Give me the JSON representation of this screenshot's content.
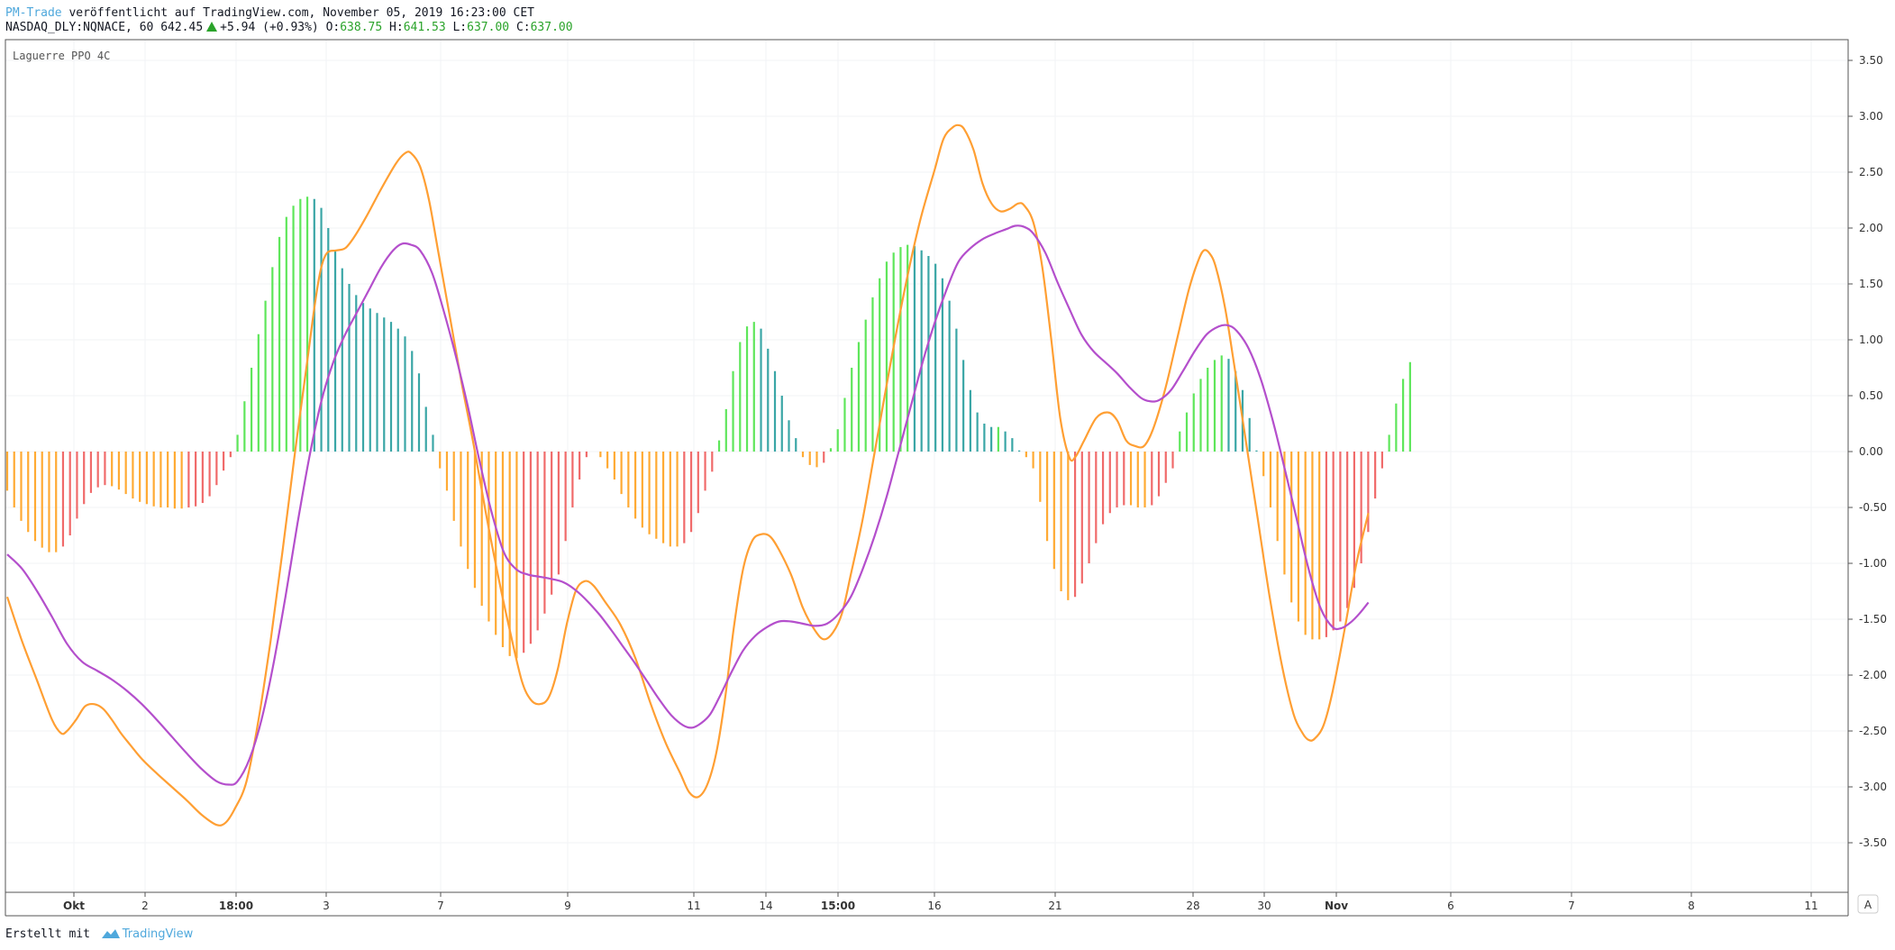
{
  "header": {
    "author": "PM-Trade",
    "published_text": "veröffentlicht auf TradingView.com, November 05, 2019 16:23:00 CET",
    "symbol": "NASDAQ_DLY:NQNACE, 60",
    "price": "642.45",
    "change": "+5.94 (+0.93%)",
    "o_label": "O:",
    "o_value": "638.75",
    "h_label": "H:",
    "h_value": "641.53",
    "l_label": "L:",
    "l_value": "637.00",
    "c_label": "C:",
    "c_value": "637.00",
    "up_icon": "triangle-up-icon"
  },
  "indicator_label": "Laguerre PPO 4C",
  "footer": {
    "prefix": "Erstellt mit",
    "brand": "TradingView",
    "brand_icon": "tradingview-logo-icon"
  },
  "scale_button": "A",
  "colors": {
    "orange_line": "#ff9f33",
    "purple_line": "#b44fcc",
    "hist_rising_pos": "#5ee65a",
    "hist_falling_pos": "#3aa6a6",
    "hist_rising_neg": "#ffaa33",
    "hist_falling_neg": "#f06a6a",
    "grid": "#f2f3f5",
    "author": "#4fa8dc",
    "up": "#2aa32a"
  },
  "chart_data": {
    "type": "line",
    "title": "Laguerre PPO 4C",
    "ylim": [
      -4.0,
      3.75
    ],
    "y_ticks": [
      "3.50",
      "3.00",
      "2.50",
      "2.00",
      "1.50",
      "1.00",
      "0.50",
      "0.00",
      "-0.50",
      "-1.00",
      "-1.50",
      "-2.00",
      "-2.50",
      "-3.00",
      "-3.50"
    ],
    "x_ticks": [
      "Okt",
      "2",
      "18:00",
      "3",
      "7",
      "9",
      "11",
      "14",
      "15:00",
      "16",
      "21",
      "28",
      "30",
      "Nov",
      "6",
      "7",
      "8",
      "11"
    ],
    "x_tick_bold": [
      "Okt",
      "18:00",
      "15:00",
      "Nov"
    ],
    "grid": true,
    "n_bars": 230,
    "series": [
      {
        "color": "#ff9f33",
        "points": [
          [
            0,
            -1.3
          ],
          [
            5,
            -1.7
          ],
          [
            10,
            -2.05
          ],
          [
            15,
            -2.4
          ],
          [
            18,
            -2.52
          ],
          [
            20,
            -2.5
          ],
          [
            23,
            -2.4
          ],
          [
            26,
            -2.28
          ],
          [
            29,
            -2.26
          ],
          [
            32,
            -2.3
          ],
          [
            35,
            -2.4
          ],
          [
            38,
            -2.52
          ],
          [
            41,
            -2.62
          ],
          [
            45,
            -2.75
          ],
          [
            50,
            -2.88
          ],
          [
            55,
            -3.0
          ],
          [
            60,
            -3.12
          ],
          [
            65,
            -3.25
          ],
          [
            70,
            -3.34
          ],
          [
            73,
            -3.32
          ],
          [
            76,
            -3.2
          ],
          [
            80,
            -2.95
          ],
          [
            84,
            -2.4
          ],
          [
            88,
            -1.7
          ],
          [
            92,
            -0.9
          ],
          [
            96,
            -0.05
          ],
          [
            100,
            0.75
          ],
          [
            103,
            1.35
          ],
          [
            105,
            1.65
          ],
          [
            107,
            1.78
          ],
          [
            110,
            1.8
          ],
          [
            113,
            1.82
          ],
          [
            116,
            1.92
          ],
          [
            120,
            2.1
          ],
          [
            125,
            2.35
          ],
          [
            130,
            2.58
          ],
          [
            133,
            2.67
          ],
          [
            135,
            2.67
          ],
          [
            138,
            2.55
          ],
          [
            141,
            2.25
          ],
          [
            144,
            1.8
          ],
          [
            148,
            1.2
          ],
          [
            152,
            0.6
          ],
          [
            156,
            0.05
          ],
          [
            160,
            -0.55
          ],
          [
            164,
            -1.1
          ],
          [
            168,
            -1.6
          ],
          [
            172,
            -2.05
          ],
          [
            175,
            -2.22
          ],
          [
            178,
            -2.26
          ],
          [
            181,
            -2.2
          ],
          [
            184,
            -1.95
          ],
          [
            187,
            -1.55
          ],
          [
            190,
            -1.25
          ],
          [
            193,
            -1.16
          ],
          [
            196,
            -1.2
          ],
          [
            200,
            -1.35
          ],
          [
            205,
            -1.55
          ],
          [
            210,
            -1.85
          ],
          [
            215,
            -2.25
          ],
          [
            220,
            -2.6
          ],
          [
            225,
            -2.88
          ],
          [
            228,
            -3.05
          ],
          [
            231,
            -3.09
          ],
          [
            234,
            -2.98
          ],
          [
            237,
            -2.7
          ],
          [
            240,
            -2.2
          ],
          [
            243,
            -1.55
          ],
          [
            246,
            -1.05
          ],
          [
            249,
            -0.8
          ],
          [
            252,
            -0.74
          ],
          [
            255,
            -0.76
          ],
          [
            258,
            -0.88
          ],
          [
            262,
            -1.1
          ],
          [
            266,
            -1.4
          ],
          [
            270,
            -1.6
          ],
          [
            273,
            -1.68
          ],
          [
            276,
            -1.62
          ],
          [
            279,
            -1.45
          ],
          [
            282,
            -1.1
          ],
          [
            286,
            -0.6
          ],
          [
            290,
            0.0
          ],
          [
            295,
            0.75
          ],
          [
            300,
            1.45
          ],
          [
            305,
            2.05
          ],
          [
            310,
            2.52
          ],
          [
            313,
            2.8
          ],
          [
            316,
            2.9
          ],
          [
            318,
            2.92
          ],
          [
            320,
            2.88
          ],
          [
            323,
            2.7
          ],
          [
            326,
            2.4
          ],
          [
            329,
            2.22
          ],
          [
            332,
            2.15
          ],
          [
            335,
            2.17
          ],
          [
            338,
            2.22
          ],
          [
            340,
            2.2
          ],
          [
            343,
            2.05
          ],
          [
            346,
            1.65
          ],
          [
            349,
            1.0
          ],
          [
            352,
            0.3
          ],
          [
            355,
            -0.05
          ],
          [
            357,
            -0.05
          ],
          [
            360,
            0.1
          ],
          [
            364,
            0.3
          ],
          [
            368,
            0.35
          ],
          [
            371,
            0.28
          ],
          [
            374,
            0.1
          ],
          [
            377,
            0.05
          ],
          [
            380,
            0.05
          ],
          [
            383,
            0.2
          ],
          [
            387,
            0.55
          ],
          [
            391,
            1.0
          ],
          [
            395,
            1.45
          ],
          [
            398,
            1.7
          ],
          [
            400,
            1.8
          ],
          [
            402,
            1.77
          ],
          [
            404,
            1.65
          ],
          [
            407,
            1.3
          ],
          [
            410,
            0.8
          ],
          [
            414,
            0.1
          ],
          [
            418,
            -0.6
          ],
          [
            422,
            -1.3
          ],
          [
            426,
            -1.9
          ],
          [
            430,
            -2.35
          ],
          [
            433,
            -2.52
          ],
          [
            435,
            -2.58
          ],
          [
            437,
            -2.57
          ],
          [
            440,
            -2.45
          ],
          [
            443,
            -2.15
          ],
          [
            447,
            -1.6
          ],
          [
            451,
            -1.0
          ],
          [
            455,
            -0.55
          ]
        ]
      },
      {
        "color": "#b44fcc",
        "points": [
          [
            0,
            -0.92
          ],
          [
            5,
            -1.05
          ],
          [
            10,
            -1.25
          ],
          [
            15,
            -1.48
          ],
          [
            20,
            -1.72
          ],
          [
            25,
            -1.88
          ],
          [
            30,
            -1.96
          ],
          [
            35,
            -2.04
          ],
          [
            40,
            -2.14
          ],
          [
            45,
            -2.26
          ],
          [
            50,
            -2.4
          ],
          [
            55,
            -2.55
          ],
          [
            60,
            -2.7
          ],
          [
            65,
            -2.84
          ],
          [
            70,
            -2.95
          ],
          [
            74,
            -2.98
          ],
          [
            77,
            -2.95
          ],
          [
            81,
            -2.75
          ],
          [
            85,
            -2.4
          ],
          [
            89,
            -1.9
          ],
          [
            93,
            -1.3
          ],
          [
            97,
            -0.65
          ],
          [
            101,
            -0.05
          ],
          [
            105,
            0.45
          ],
          [
            109,
            0.8
          ],
          [
            113,
            1.05
          ],
          [
            117,
            1.25
          ],
          [
            121,
            1.45
          ],
          [
            125,
            1.65
          ],
          [
            129,
            1.8
          ],
          [
            132,
            1.86
          ],
          [
            135,
            1.85
          ],
          [
            138,
            1.8
          ],
          [
            142,
            1.6
          ],
          [
            146,
            1.25
          ],
          [
            150,
            0.85
          ],
          [
            154,
            0.4
          ],
          [
            158,
            -0.1
          ],
          [
            162,
            -0.55
          ],
          [
            166,
            -0.9
          ],
          [
            170,
            -1.05
          ],
          [
            174,
            -1.1
          ],
          [
            178,
            -1.12
          ],
          [
            182,
            -1.14
          ],
          [
            186,
            -1.17
          ],
          [
            190,
            -1.24
          ],
          [
            194,
            -1.34
          ],
          [
            198,
            -1.46
          ],
          [
            202,
            -1.6
          ],
          [
            206,
            -1.75
          ],
          [
            210,
            -1.9
          ],
          [
            214,
            -2.06
          ],
          [
            218,
            -2.22
          ],
          [
            222,
            -2.36
          ],
          [
            226,
            -2.45
          ],
          [
            229,
            -2.47
          ],
          [
            232,
            -2.43
          ],
          [
            235,
            -2.35
          ],
          [
            238,
            -2.2
          ],
          [
            242,
            -1.98
          ],
          [
            246,
            -1.78
          ],
          [
            250,
            -1.65
          ],
          [
            254,
            -1.57
          ],
          [
            258,
            -1.52
          ],
          [
            262,
            -1.52
          ],
          [
            266,
            -1.54
          ],
          [
            270,
            -1.56
          ],
          [
            274,
            -1.54
          ],
          [
            278,
            -1.45
          ],
          [
            282,
            -1.3
          ],
          [
            286,
            -1.05
          ],
          [
            290,
            -0.75
          ],
          [
            294,
            -0.4
          ],
          [
            298,
            0.0
          ],
          [
            302,
            0.4
          ],
          [
            306,
            0.8
          ],
          [
            310,
            1.15
          ],
          [
            314,
            1.45
          ],
          [
            318,
            1.7
          ],
          [
            322,
            1.82
          ],
          [
            326,
            1.9
          ],
          [
            330,
            1.95
          ],
          [
            334,
            1.99
          ],
          [
            337,
            2.02
          ],
          [
            340,
            2.01
          ],
          [
            343,
            1.95
          ],
          [
            347,
            1.78
          ],
          [
            351,
            1.52
          ],
          [
            355,
            1.28
          ],
          [
            359,
            1.05
          ],
          [
            363,
            0.9
          ],
          [
            367,
            0.8
          ],
          [
            371,
            0.7
          ],
          [
            375,
            0.58
          ],
          [
            379,
            0.48
          ],
          [
            382,
            0.45
          ],
          [
            385,
            0.46
          ],
          [
            389,
            0.55
          ],
          [
            393,
            0.72
          ],
          [
            397,
            0.9
          ],
          [
            401,
            1.05
          ],
          [
            405,
            1.12
          ],
          [
            408,
            1.13
          ],
          [
            411,
            1.08
          ],
          [
            415,
            0.92
          ],
          [
            419,
            0.65
          ],
          [
            423,
            0.28
          ],
          [
            427,
            -0.15
          ],
          [
            431,
            -0.6
          ],
          [
            435,
            -1.05
          ],
          [
            439,
            -1.4
          ],
          [
            443,
            -1.57
          ],
          [
            446,
            -1.58
          ],
          [
            449,
            -1.53
          ],
          [
            452,
            -1.45
          ],
          [
            455,
            -1.35
          ]
        ]
      }
    ],
    "histogram": {
      "x_start": 0,
      "x_step": 2.333,
      "values": [
        -0.35,
        -0.5,
        -0.62,
        -0.72,
        -0.8,
        -0.86,
        -0.9,
        -0.9,
        -0.85,
        -0.75,
        -0.6,
        -0.47,
        -0.37,
        -0.32,
        -0.3,
        -0.31,
        -0.34,
        -0.38,
        -0.42,
        -0.45,
        -0.47,
        -0.49,
        -0.5,
        -0.5,
        -0.51,
        -0.51,
        -0.5,
        -0.49,
        -0.46,
        -0.4,
        -0.3,
        -0.17,
        -0.05,
        0.15,
        0.45,
        0.75,
        1.05,
        1.35,
        1.65,
        1.92,
        2.1,
        2.2,
        2.26,
        2.28,
        2.26,
        2.18,
        2.0,
        1.8,
        1.64,
        1.5,
        1.4,
        1.33,
        1.28,
        1.24,
        1.2,
        1.16,
        1.1,
        1.03,
        0.9,
        0.7,
        0.4,
        0.15,
        -0.15,
        -0.35,
        -0.62,
        -0.85,
        -1.05,
        -1.22,
        -1.38,
        -1.52,
        -1.64,
        -1.75,
        -1.83,
        -1.85,
        -1.8,
        -1.72,
        -1.6,
        -1.45,
        -1.28,
        -1.1,
        -0.8,
        -0.5,
        -0.25,
        -0.05,
        0.0,
        -0.05,
        -0.15,
        -0.25,
        -0.38,
        -0.5,
        -0.6,
        -0.68,
        -0.74,
        -0.78,
        -0.82,
        -0.85,
        -0.85,
        -0.82,
        -0.72,
        -0.55,
        -0.35,
        -0.18,
        0.1,
        0.38,
        0.72,
        0.98,
        1.12,
        1.16,
        1.1,
        0.92,
        0.72,
        0.5,
        0.28,
        0.12,
        -0.05,
        -0.12,
        -0.14,
        -0.1,
        0.03,
        0.2,
        0.48,
        0.75,
        0.98,
        1.18,
        1.38,
        1.55,
        1.7,
        1.78,
        1.83,
        1.85,
        1.84,
        1.8,
        1.75,
        1.68,
        1.55,
        1.35,
        1.1,
        0.82,
        0.55,
        0.35,
        0.25,
        0.22,
        0.22,
        0.18,
        0.12,
        0.01,
        -0.05,
        -0.15,
        -0.45,
        -0.8,
        -1.05,
        -1.25,
        -1.33,
        -1.3,
        -1.18,
        -1.0,
        -0.82,
        -0.65,
        -0.55,
        -0.5,
        -0.48,
        -0.48,
        -0.5,
        -0.5,
        -0.48,
        -0.4,
        -0.28,
        -0.15,
        0.18,
        0.35,
        0.52,
        0.65,
        0.75,
        0.82,
        0.86,
        0.83,
        0.72,
        0.55,
        0.3,
        0.01,
        -0.22,
        -0.5,
        -0.8,
        -1.1,
        -1.35,
        -1.52,
        -1.64,
        -1.68,
        -1.68,
        -1.66,
        -1.6,
        -1.52,
        -1.4,
        -1.22,
        -1.0,
        -0.72,
        -0.42,
        -0.15,
        0.15,
        0.43,
        0.65,
        0.8
      ]
    }
  }
}
